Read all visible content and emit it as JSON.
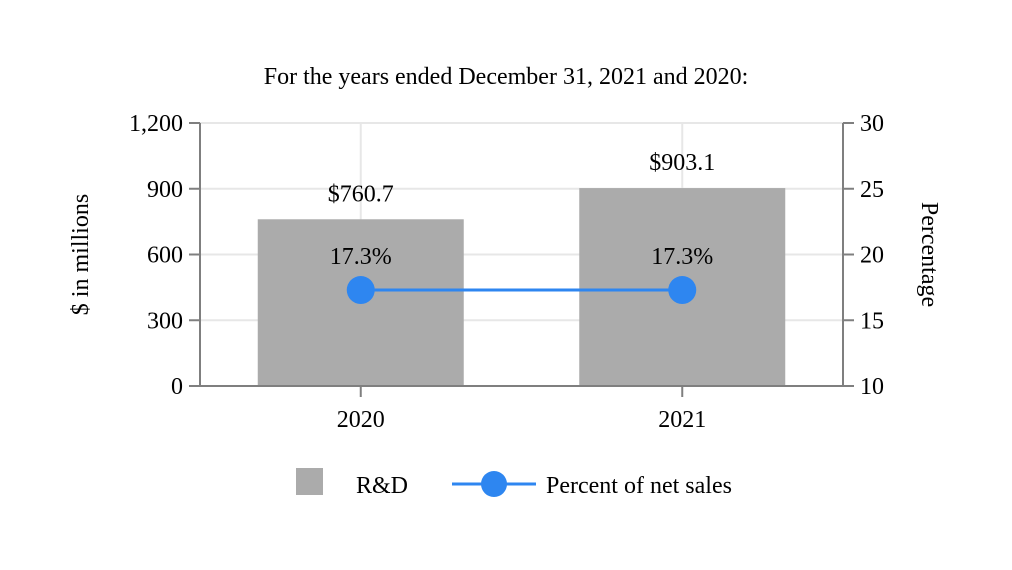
{
  "title": "For the years ended December 31, 2021 and 2020:",
  "colors": {
    "background": "#FFFFFF",
    "bar": "#ABABAB",
    "line": "#2E86F0",
    "axis": "#7F7F7F",
    "grid": "#E7E7E7",
    "text": "#000000"
  },
  "chart_data": {
    "type": "combo-bar-line",
    "categories": [
      "2020",
      "2021"
    ],
    "series": [
      {
        "name": "R&D",
        "type": "bar",
        "axis": "left",
        "values": [
          760.7,
          903.1
        ],
        "value_labels": [
          "$760.7",
          "$903.1"
        ],
        "color": "#ABABAB"
      },
      {
        "name": "Percent of net sales",
        "type": "line",
        "axis": "right",
        "values": [
          17.3,
          17.3
        ],
        "value_labels": [
          "17.3%",
          "17.3%"
        ],
        "color": "#2E86F0"
      }
    ],
    "left_axis": {
      "label": "$ in millions",
      "min": 0,
      "max": 1200,
      "ticks": [
        0,
        300,
        600,
        900,
        1200
      ],
      "tick_labels": [
        "0",
        "300",
        "600",
        "900",
        "1,200"
      ]
    },
    "right_axis": {
      "label": "Percentage",
      "min": 10,
      "max": 30,
      "ticks": [
        10,
        15,
        20,
        25,
        30
      ],
      "tick_labels": [
        "10",
        "15",
        "20",
        "25",
        "30"
      ]
    },
    "grid": {
      "horizontal": true,
      "vertical_at_category_centers": true
    },
    "legend_position": "bottom-center"
  }
}
